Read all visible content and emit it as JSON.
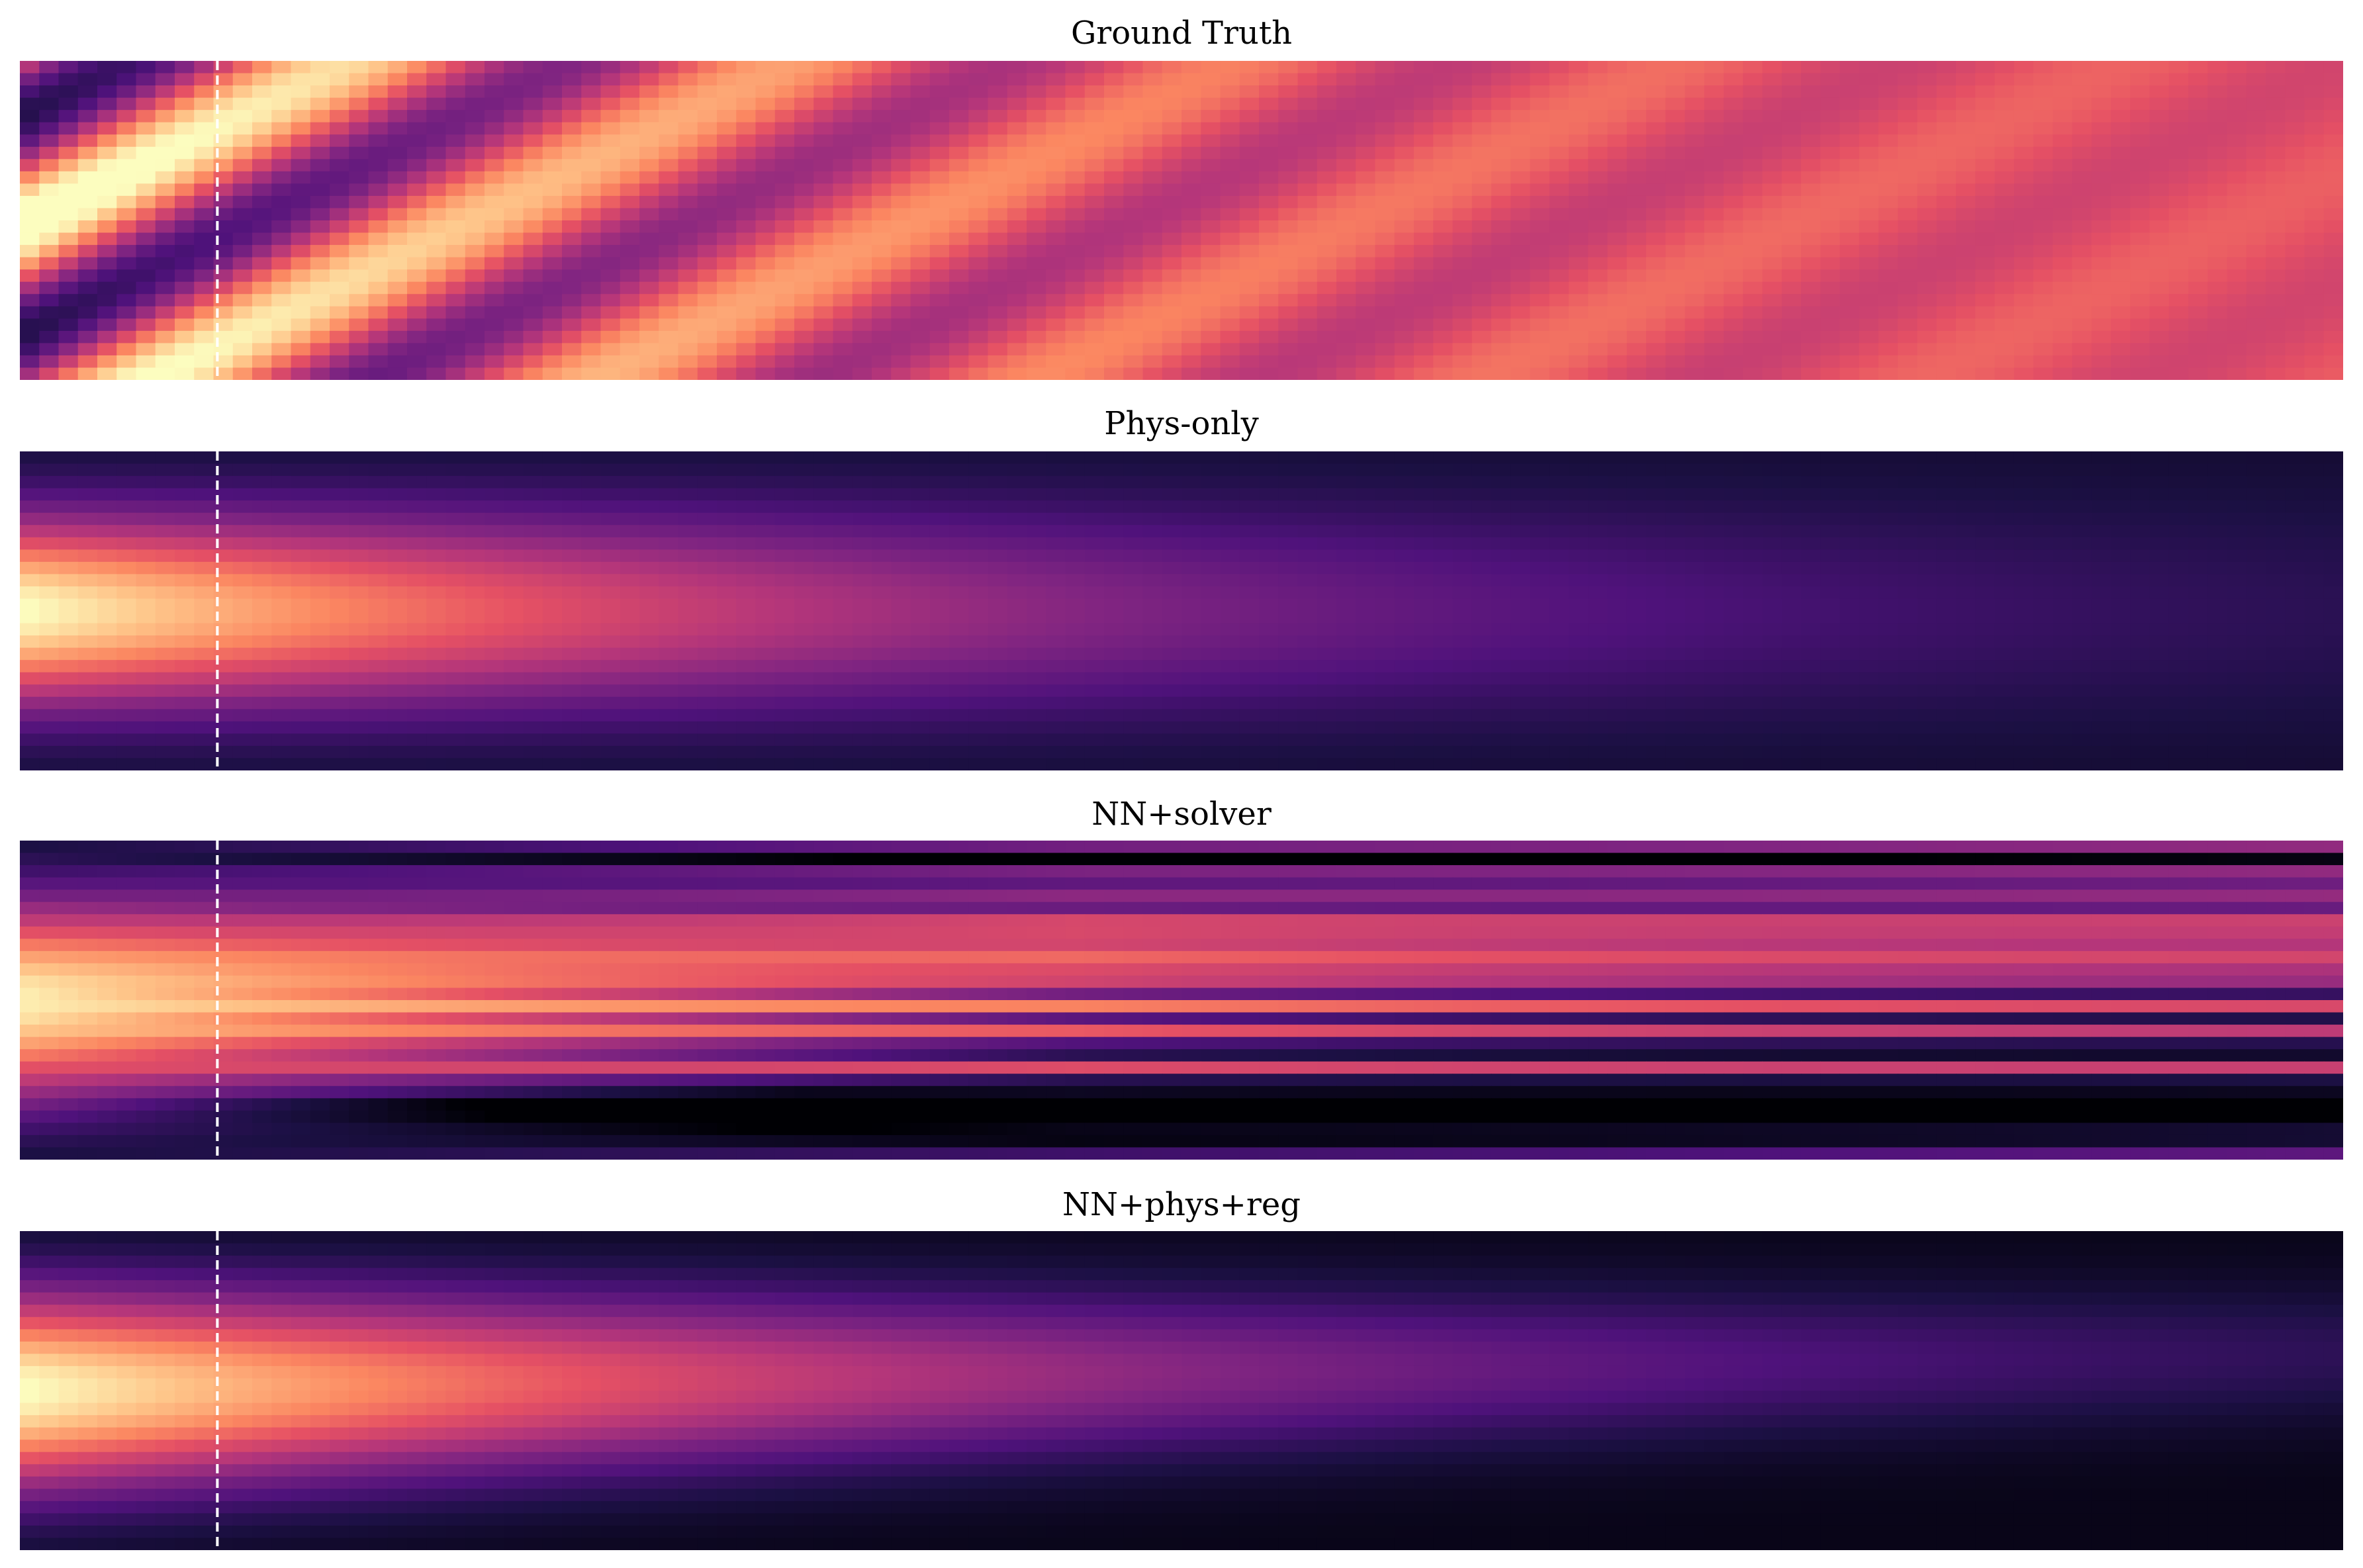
{
  "chart_data": [
    {
      "type": "heatmap",
      "title": "Ground Truth",
      "colormap": "magma",
      "axes": "off",
      "marker_line": {
        "style": "dashed",
        "color": "#ffffff",
        "x_fraction": 0.085
      },
      "dynamics": "oscillating-decaying-to-uniform"
    },
    {
      "type": "heatmap",
      "title": "Phys-only",
      "colormap": "magma",
      "axes": "off",
      "marker_line": {
        "style": "dashed",
        "color": "#ffffff",
        "x_fraction": 0.085
      },
      "dynamics": "diffusive-decay"
    },
    {
      "type": "heatmap",
      "title": "NN+solver",
      "colormap": "magma",
      "axes": "off",
      "marker_line": {
        "style": "dashed",
        "color": "#ffffff",
        "x_fraction": 0.085
      },
      "dynamics": "striped-drift"
    },
    {
      "type": "heatmap",
      "title": "NN+phys+reg",
      "colormap": "magma",
      "axes": "off",
      "marker_line": {
        "style": "dashed",
        "color": "#ffffff",
        "x_fraction": 0.085
      },
      "dynamics": "regularized-decay"
    }
  ]
}
